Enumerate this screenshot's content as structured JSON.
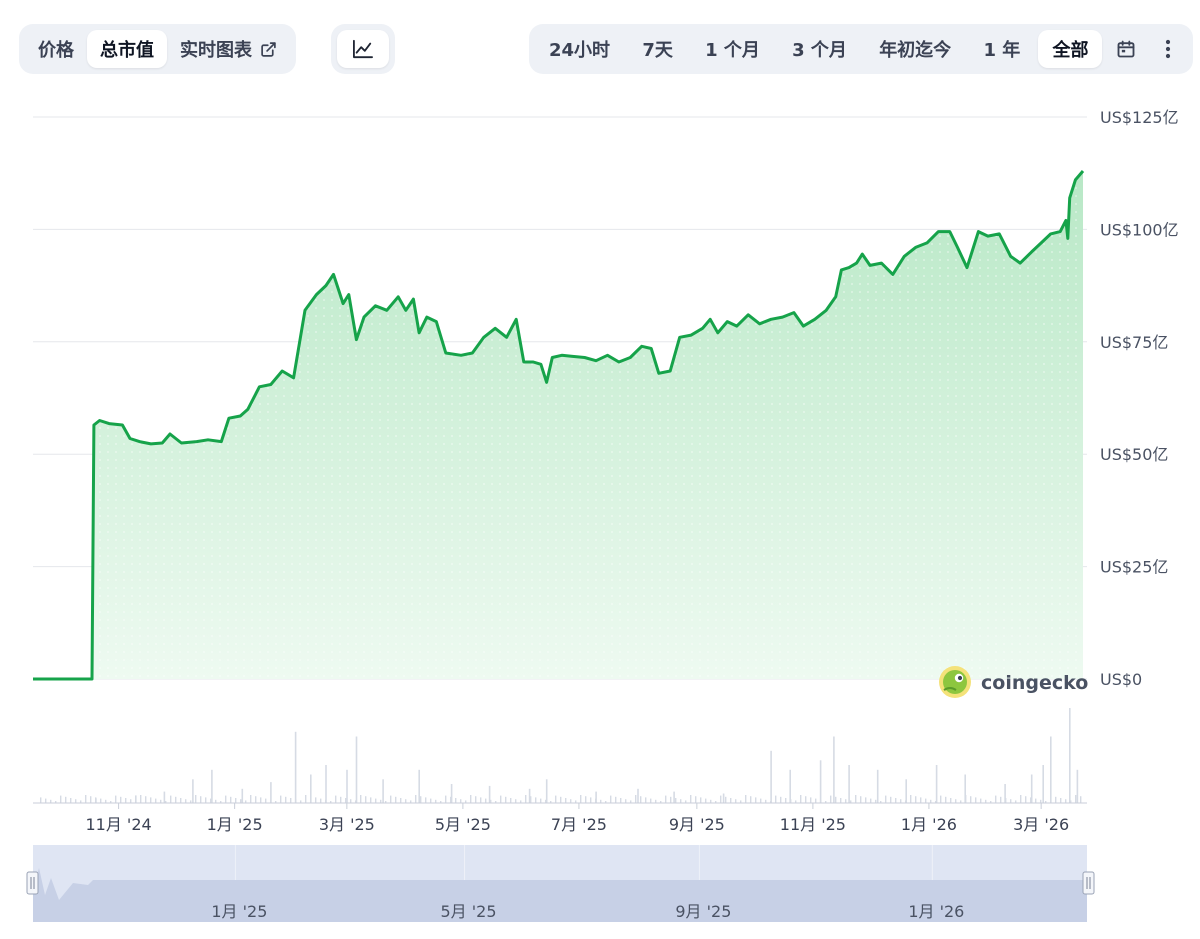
{
  "toolbar": {
    "metric_tabs": [
      {
        "label": "价格",
        "active": false
      },
      {
        "label": "总市值",
        "active": true
      },
      {
        "label": "实时图表",
        "active": false
      }
    ],
    "chart_type_icon": "line-chart-icon",
    "ranges": [
      {
        "label": "24小时",
        "active": false
      },
      {
        "label": "7天",
        "active": false
      },
      {
        "label": "1 个月",
        "active": false
      },
      {
        "label": "3 个月",
        "active": false
      },
      {
        "label": "年初迄今",
        "active": false
      },
      {
        "label": "1 年",
        "active": false
      },
      {
        "label": "全部",
        "active": true
      }
    ],
    "calendar_icon": "calendar-icon",
    "more_icon": "more-vertical-icon",
    "external_icon": "external-link-icon"
  },
  "brand": {
    "name": "coingecko",
    "logo_icon": "coingecko-gecko-icon"
  },
  "colors": {
    "line": "#16a34a",
    "fill_top": "#b8e8c6",
    "fill_bottom": "#eefaf1",
    "grid": "#e5e7eb",
    "volume": "#d6dbe4",
    "navigator_bg": "#dfe5f3",
    "navigator_area": "#c7d0e6"
  },
  "chart_data": {
    "type": "area",
    "title": "",
    "y_axis": {
      "min": 0,
      "max": 125,
      "unit": "亿美元",
      "ticks": [
        {
          "value": 0,
          "label": "US$0"
        },
        {
          "value": 25,
          "label": "US$25亿"
        },
        {
          "value": 50,
          "label": "US$50亿"
        },
        {
          "value": 75,
          "label": "US$75亿"
        },
        {
          "value": 100,
          "label": "US$100亿"
        },
        {
          "value": 125,
          "label": "US$125亿"
        }
      ],
      "position": "right",
      "grid": true
    },
    "x_axis": {
      "start": "2024-09-17",
      "end": "2026-03-23",
      "ticks": [
        {
          "date": "2024-11-01",
          "label": "11月 '24"
        },
        {
          "date": "2025-01-01",
          "label": "1月 '25"
        },
        {
          "date": "2025-03-01",
          "label": "3月 '25"
        },
        {
          "date": "2025-05-01",
          "label": "5月 '25"
        },
        {
          "date": "2025-07-01",
          "label": "7月 '25"
        },
        {
          "date": "2025-09-01",
          "label": "9月 '25"
        },
        {
          "date": "2025-11-01",
          "label": "11月 '25"
        },
        {
          "date": "2026-01-01",
          "label": "1月 '26"
        },
        {
          "date": "2026-03-01",
          "label": "3月 '26"
        }
      ]
    },
    "series": [
      {
        "points": [
          [
            "2024-09-17",
            0
          ],
          [
            "2024-10-18",
            0
          ],
          [
            "2024-10-19",
            56.5
          ],
          [
            "2024-10-22",
            57.5
          ],
          [
            "2024-10-27",
            56.8
          ],
          [
            "2024-11-03",
            56.5
          ],
          [
            "2024-11-07",
            53.5
          ],
          [
            "2024-11-12",
            52.8
          ],
          [
            "2024-11-18",
            52.3
          ],
          [
            "2024-11-24",
            52.5
          ],
          [
            "2024-11-28",
            54.5
          ],
          [
            "2024-12-04",
            52.5
          ],
          [
            "2024-12-12",
            52.8
          ],
          [
            "2024-12-18",
            53.2
          ],
          [
            "2024-12-25",
            52.8
          ],
          [
            "2024-12-29",
            58.0
          ],
          [
            "2025-01-04",
            58.5
          ],
          [
            "2025-01-08",
            60.0
          ],
          [
            "2025-01-14",
            65.0
          ],
          [
            "2025-01-20",
            65.5
          ],
          [
            "2025-01-26",
            68.5
          ],
          [
            "2025-02-01",
            67.0
          ],
          [
            "2025-02-07",
            82.0
          ],
          [
            "2025-02-13",
            85.5
          ],
          [
            "2025-02-18",
            87.5
          ],
          [
            "2025-02-22",
            90.0
          ],
          [
            "2025-02-27",
            83.5
          ],
          [
            "2025-03-02",
            85.5
          ],
          [
            "2025-03-06",
            75.5
          ],
          [
            "2025-03-10",
            80.5
          ],
          [
            "2025-03-16",
            83.0
          ],
          [
            "2025-03-22",
            82.0
          ],
          [
            "2025-03-28",
            85.0
          ],
          [
            "2025-04-01",
            82.0
          ],
          [
            "2025-04-05",
            84.5
          ],
          [
            "2025-04-08",
            77.0
          ],
          [
            "2025-04-12",
            80.5
          ],
          [
            "2025-04-17",
            79.5
          ],
          [
            "2025-04-22",
            72.5
          ],
          [
            "2025-04-30",
            72.0
          ],
          [
            "2025-05-06",
            72.5
          ],
          [
            "2025-05-12",
            76.0
          ],
          [
            "2025-05-18",
            78.0
          ],
          [
            "2025-05-24",
            76.0
          ],
          [
            "2025-05-29",
            80.0
          ],
          [
            "2025-06-02",
            70.5
          ],
          [
            "2025-06-07",
            70.5
          ],
          [
            "2025-06-11",
            70.0
          ],
          [
            "2025-06-14",
            66.0
          ],
          [
            "2025-06-17",
            71.5
          ],
          [
            "2025-06-22",
            72.0
          ],
          [
            "2025-06-27",
            71.8
          ],
          [
            "2025-07-04",
            71.5
          ],
          [
            "2025-07-10",
            70.8
          ],
          [
            "2025-07-16",
            72.0
          ],
          [
            "2025-07-22",
            70.5
          ],
          [
            "2025-07-28",
            71.5
          ],
          [
            "2025-08-03",
            74.0
          ],
          [
            "2025-08-08",
            73.5
          ],
          [
            "2025-08-12",
            68.0
          ],
          [
            "2025-08-18",
            68.5
          ],
          [
            "2025-08-23",
            76.0
          ],
          [
            "2025-08-29",
            76.5
          ],
          [
            "2025-09-04",
            78.0
          ],
          [
            "2025-09-08",
            80.0
          ],
          [
            "2025-09-12",
            77.0
          ],
          [
            "2025-09-17",
            79.5
          ],
          [
            "2025-09-22",
            78.5
          ],
          [
            "2025-09-28",
            81.0
          ],
          [
            "2025-10-04",
            79.0
          ],
          [
            "2025-10-10",
            80.0
          ],
          [
            "2025-10-16",
            80.5
          ],
          [
            "2025-10-22",
            81.5
          ],
          [
            "2025-10-27",
            78.5
          ],
          [
            "2025-11-02",
            80.0
          ],
          [
            "2025-11-08",
            82.0
          ],
          [
            "2025-11-13",
            85.0
          ],
          [
            "2025-11-16",
            91.0
          ],
          [
            "2025-11-20",
            91.5
          ],
          [
            "2025-11-24",
            92.5
          ],
          [
            "2025-11-27",
            94.5
          ],
          [
            "2025-12-01",
            92.0
          ],
          [
            "2025-12-07",
            92.5
          ],
          [
            "2025-12-13",
            90.0
          ],
          [
            "2025-12-19",
            94.0
          ],
          [
            "2025-12-25",
            96.0
          ],
          [
            "2025-12-31",
            97.0
          ],
          [
            "2026-01-06",
            99.5
          ],
          [
            "2026-01-12",
            99.5
          ],
          [
            "2026-01-16",
            96.0
          ],
          [
            "2026-01-21",
            91.5
          ],
          [
            "2026-01-27",
            99.5
          ],
          [
            "2026-02-01",
            98.5
          ],
          [
            "2026-02-07",
            99.0
          ],
          [
            "2026-02-13",
            94.0
          ],
          [
            "2026-02-18",
            92.5
          ],
          [
            "2026-02-24",
            95.0
          ],
          [
            "2026-03-01",
            97.0
          ],
          [
            "2026-03-06",
            99.0
          ],
          [
            "2026-03-11",
            99.5
          ],
          [
            "2026-03-14",
            102.0
          ],
          [
            "2026-03-15",
            98.0
          ],
          [
            "2026-03-16",
            107.0
          ],
          [
            "2026-03-19",
            111.0
          ],
          [
            "2026-03-23",
            113.0
          ]
        ]
      }
    ],
    "volume": {
      "note_values_relative": true,
      "points": [
        [
          "2024-10-20",
          0.05
        ],
        [
          "2024-11-10",
          0.08
        ],
        [
          "2024-11-25",
          0.12
        ],
        [
          "2024-12-10",
          0.25
        ],
        [
          "2024-12-20",
          0.35
        ],
        [
          "2025-01-05",
          0.15
        ],
        [
          "2025-01-20",
          0.22
        ],
        [
          "2025-02-02",
          0.75
        ],
        [
          "2025-02-10",
          0.3
        ],
        [
          "2025-02-18",
          0.4
        ],
        [
          "2025-03-01",
          0.35
        ],
        [
          "2025-03-06",
          0.7
        ],
        [
          "2025-03-20",
          0.25
        ],
        [
          "2025-04-08",
          0.35
        ],
        [
          "2025-04-25",
          0.2
        ],
        [
          "2025-05-15",
          0.18
        ],
        [
          "2025-06-05",
          0.15
        ],
        [
          "2025-06-14",
          0.25
        ],
        [
          "2025-07-10",
          0.12
        ],
        [
          "2025-08-01",
          0.15
        ],
        [
          "2025-08-20",
          0.12
        ],
        [
          "2025-09-15",
          0.1
        ],
        [
          "2025-10-10",
          0.55
        ],
        [
          "2025-10-20",
          0.35
        ],
        [
          "2025-11-05",
          0.45
        ],
        [
          "2025-11-12",
          0.7
        ],
        [
          "2025-11-20",
          0.4
        ],
        [
          "2025-12-05",
          0.35
        ],
        [
          "2025-12-20",
          0.25
        ],
        [
          "2026-01-05",
          0.4
        ],
        [
          "2026-01-20",
          0.3
        ],
        [
          "2026-02-10",
          0.2
        ],
        [
          "2026-02-24",
          0.3
        ],
        [
          "2026-03-02",
          0.4
        ],
        [
          "2026-03-06",
          0.7
        ],
        [
          "2026-03-16",
          1.0
        ],
        [
          "2026-03-20",
          0.35
        ]
      ]
    },
    "navigator": {
      "range_start": "2024-09-17",
      "range_end": "2026-03-23",
      "ticks": [
        {
          "date": "2025-01-01",
          "label": "1月 '25"
        },
        {
          "date": "2025-05-01",
          "label": "5月 '25"
        },
        {
          "date": "2025-09-01",
          "label": "9月 '25"
        },
        {
          "date": "2026-01-01",
          "label": "1月 '26"
        }
      ]
    }
  }
}
